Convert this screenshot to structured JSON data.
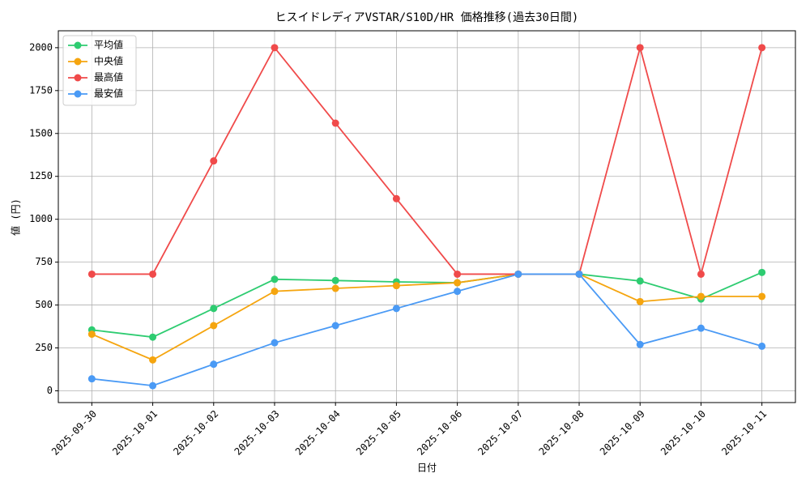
{
  "chart_data": {
    "type": "line",
    "title": "ヒスイドレディアVSTAR/S10D/HR 価格推移(過去30日間)",
    "xlabel": "日付",
    "ylabel": "値 (円)",
    "categories": [
      "2025-09-30",
      "2025-10-01",
      "2025-10-02",
      "2025-10-03",
      "2025-10-04",
      "2025-10-05",
      "2025-10-06",
      "2025-10-07",
      "2025-10-08",
      "2025-10-09",
      "2025-10-10",
      "2025-10-11"
    ],
    "series": [
      {
        "name": "平均値",
        "color": "#2ecc71",
        "values": [
          355,
          313,
          480,
          650,
          643,
          635,
          630,
          680,
          680,
          640,
          535,
          690
        ]
      },
      {
        "name": "中央値",
        "color": "#f5a50f",
        "values": [
          330,
          180,
          380,
          580,
          597,
          613,
          630,
          680,
          680,
          520,
          550,
          550
        ]
      },
      {
        "name": "最高値",
        "color": "#f04a4a",
        "values": [
          680,
          680,
          1340,
          2000,
          1560,
          1120,
          680,
          680,
          680,
          2000,
          680,
          2000
        ]
      },
      {
        "name": "最安値",
        "color": "#4a9af5",
        "values": [
          70,
          30,
          155,
          280,
          380,
          480,
          580,
          680,
          680,
          270,
          365,
          260
        ]
      }
    ],
    "ylim": [
      -68.5,
      2098.5
    ],
    "yticks": [
      0,
      250,
      500,
      750,
      1000,
      1250,
      1500,
      1750,
      2000
    ],
    "grid": true,
    "legend": "upper left"
  }
}
